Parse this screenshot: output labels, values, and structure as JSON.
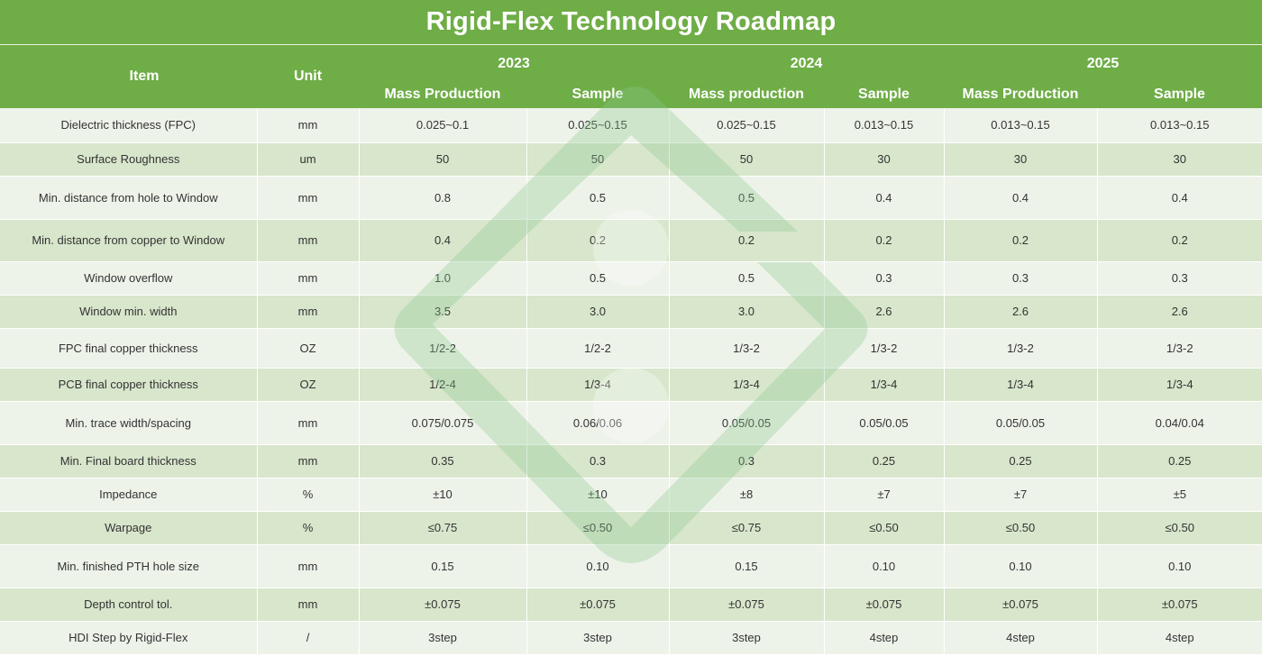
{
  "title": "Rigid-Flex Technology Roadmap",
  "header": {
    "item": "Item",
    "unit": "Unit",
    "years": [
      "2023",
      "2024",
      "2025"
    ],
    "subs": [
      "Mass Production",
      "Sample",
      "Mass production",
      "Sample",
      "Mass Production",
      "Sample"
    ]
  },
  "rows": [
    [
      "Dielectric thickness (FPC)",
      "mm",
      "0.025~0.1",
      "0.025~0.15",
      "0.025~0.15",
      "0.013~0.15",
      "0.013~0.15",
      "0.013~0.15"
    ],
    [
      "Surface Roughness",
      "um",
      "50",
      "50",
      "50",
      "30",
      "30",
      "30"
    ],
    [
      "Min. distance from hole to Window",
      "mm",
      "0.8",
      "0.5",
      "0.5",
      "0.4",
      "0.4",
      "0.4"
    ],
    [
      "Min. distance from copper to Window",
      "mm",
      "0.4",
      "0.2",
      "0.2",
      "0.2",
      "0.2",
      "0.2"
    ],
    [
      "Window overflow",
      "mm",
      "1.0",
      "0.5",
      "0.5",
      "0.3",
      "0.3",
      "0.3"
    ],
    [
      "Window min. width",
      "mm",
      "3.5",
      "3.0",
      "3.0",
      "2.6",
      "2.6",
      "2.6"
    ],
    [
      "FPC final copper thickness",
      "OZ",
      "1/2-2",
      "1/2-2",
      "1/3-2",
      "1/3-2",
      "1/3-2",
      "1/3-2"
    ],
    [
      "PCB final copper thickness",
      "OZ",
      "1/2-4",
      "1/3-4",
      "1/3-4",
      "1/3-4",
      "1/3-4",
      "1/3-4"
    ],
    [
      "Min. trace width/spacing",
      "mm",
      "0.075/0.075",
      "0.06/0.06",
      "0.05/0.05",
      "0.05/0.05",
      "0.05/0.05",
      "0.04/0.04"
    ],
    [
      "Min. Final board thickness",
      "mm",
      "0.35",
      "0.3",
      "0.3",
      "0.25",
      "0.25",
      "0.25"
    ],
    [
      "Impedance",
      "%",
      "±10",
      "±10",
      "±8",
      "±7",
      "±7",
      "±5"
    ],
    [
      "Warpage",
      "%",
      "≤0.75",
      "≤0.50",
      "≤0.75",
      "≤0.50",
      "≤0.50",
      "≤0.50"
    ],
    [
      "Min. finished PTH hole size",
      "mm",
      "0.15",
      "0.10",
      "0.15",
      "0.10",
      "0.10",
      "0.10"
    ],
    [
      "Depth control tol.",
      "mm",
      "±0.075",
      "±0.075",
      "±0.075",
      "±0.075",
      "±0.075",
      "±0.075"
    ],
    [
      "HDI Step by Rigid-Flex",
      "/",
      "3step",
      "3step",
      "3step",
      "4step",
      "4step",
      "4step"
    ]
  ],
  "colors": {
    "header_green": "#6fad47",
    "row_light": "#eef3ea",
    "row_dark": "#d8e6cc",
    "watermark_green": "#8cc990"
  },
  "watermark_icon": "logo-watermark-icon"
}
